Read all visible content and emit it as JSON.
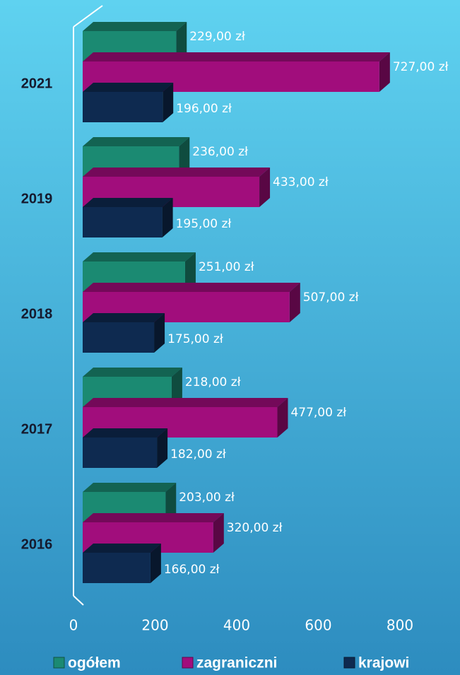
{
  "chart_data": {
    "type": "bar3d-horizontal",
    "categories": [
      "2021",
      "2019",
      "2018",
      "2017",
      "2016"
    ],
    "series": [
      {
        "name": "ogółem",
        "color": "#1b8a72",
        "values": [
          229,
          236,
          251,
          218,
          203
        ],
        "value_labels": [
          "229,00 zł",
          "236,00 zł",
          "251,00 zł",
          "218,00 zł",
          "203,00 zł"
        ]
      },
      {
        "name": "zagraniczni",
        "color": "#a10d7c",
        "values": [
          727,
          433,
          507,
          477,
          320
        ],
        "value_labels": [
          "727,00 zł",
          "433,00 zł",
          "507,00 zł",
          "477,00 zł",
          "320,00 zł"
        ]
      },
      {
        "name": "krajowi",
        "color": "#0e2a50",
        "values": [
          196,
          195,
          175,
          182,
          166
        ],
        "value_labels": [
          "196,00 zł",
          "195,00 zł",
          "175,00 zł",
          "182,00 zł",
          "166,00 zł"
        ]
      }
    ],
    "xlim": [
      0,
      800
    ],
    "xticks": [
      0,
      200,
      400,
      600,
      800
    ],
    "legend": "bottom"
  }
}
